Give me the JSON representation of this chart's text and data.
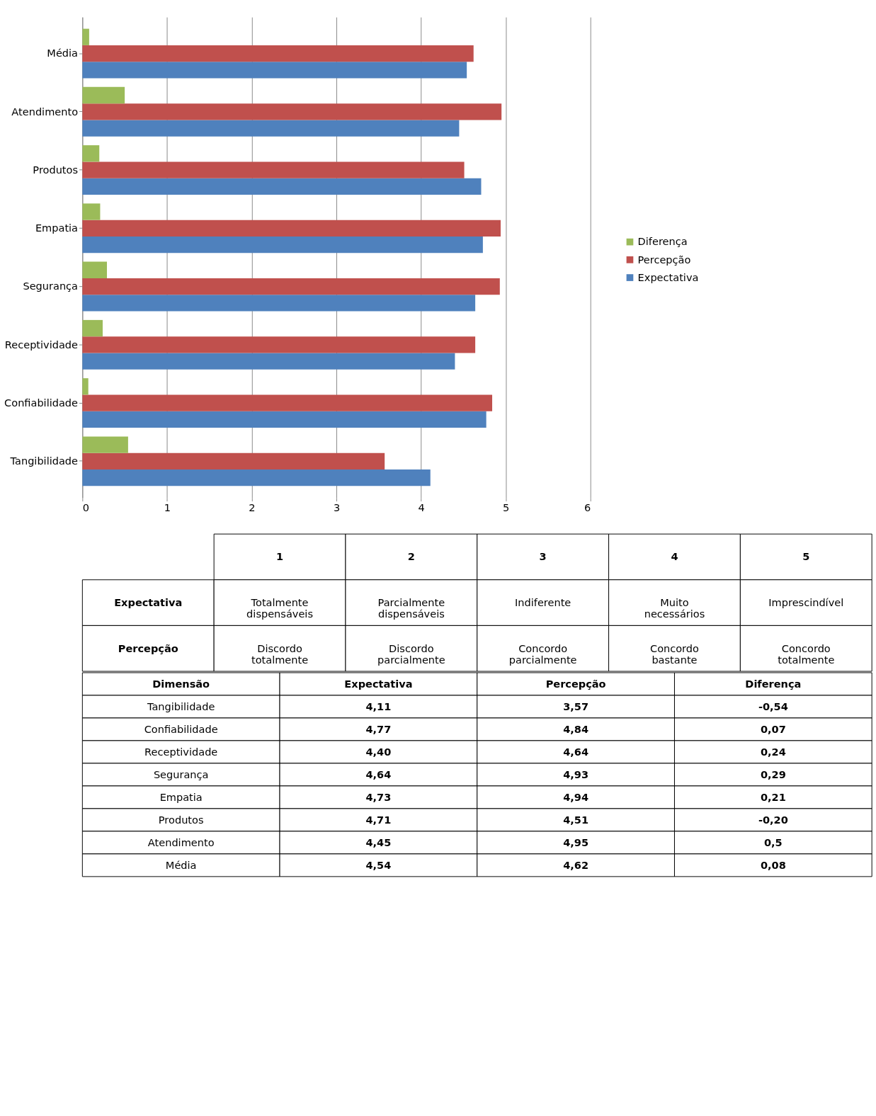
{
  "chart_data": {
    "type": "bar",
    "orientation": "horizontal",
    "categories": [
      "Média",
      "Atendimento",
      "Produtos",
      "Empatia",
      "Segurança",
      "Receptividade",
      "Confiabilidade",
      "Tangibilidade"
    ],
    "series": [
      {
        "name": "Expectativa",
        "color": "#4f81bd",
        "values": [
          4.54,
          4.45,
          4.71,
          4.73,
          4.64,
          4.4,
          4.77,
          4.11
        ]
      },
      {
        "name": "Percepção",
        "color": "#c0504d",
        "values": [
          4.62,
          4.95,
          4.51,
          4.94,
          4.93,
          4.64,
          4.84,
          3.57
        ]
      },
      {
        "name": "Diferença",
        "color": "#9bbb59",
        "values": [
          0.08,
          0.5,
          0.2,
          0.21,
          0.29,
          0.24,
          0.07,
          0.54
        ]
      }
    ],
    "xlim": [
      0,
      6
    ],
    "xticks": [
      0,
      1,
      2,
      3,
      4,
      5,
      6
    ],
    "grid": "x",
    "legend": "right",
    "annotations": [
      "1",
      "2",
      "3",
      "4",
      "5",
      "Expectativa",
      "Totalmente\ndispensáveis",
      "Parcialmente\ndispensáveis",
      "Indiferente",
      "Muito\nnecessários",
      "Imprescindível",
      "Percepção",
      "Discordo\ntotalmente",
      "Discordo\nparcialmente",
      "Concordo\nparcialmente",
      "Concordo\nbastante",
      "Concordo\ntotalmente",
      "Dimensão",
      "4,11",
      "3,57",
      "-0,54",
      "4,77",
      "4,84",
      "0,07",
      "4,40",
      "4,64",
      "0,24",
      "4,64",
      "4,93",
      "0,29",
      "4,73",
      "4,94",
      "0,21",
      "4,71",
      "4,51",
      "-0,20",
      "4,45",
      "4,95",
      "0,5",
      "4,54",
      "4,62",
      "0,08"
    ]
  }
}
